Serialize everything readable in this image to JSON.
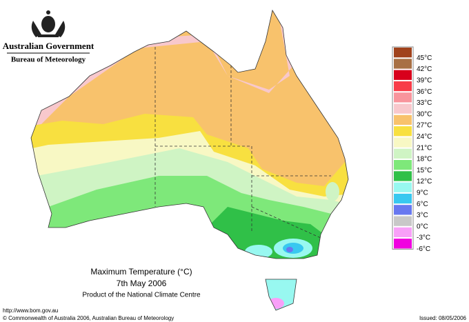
{
  "header": {
    "title": "Australian Government",
    "subtitle": "Bureau of Meteorology"
  },
  "legend": [
    {
      "label": "45°C",
      "color": "#a0421c"
    },
    {
      "label": "42°C",
      "color": "#a87044"
    },
    {
      "label": "39°C",
      "color": "#d8001c"
    },
    {
      "label": "36°C",
      "color": "#f83c48"
    },
    {
      "label": "33°C",
      "color": "#f8949c"
    },
    {
      "label": "30°C",
      "color": "#f8c8cc"
    },
    {
      "label": "27°C",
      "color": "#f8c26c"
    },
    {
      "label": "24°C",
      "color": "#f8e040"
    },
    {
      "label": "21°C",
      "color": "#f8f8c4"
    },
    {
      "label": "18°C",
      "color": "#cff4c4"
    },
    {
      "label": "15°C",
      "color": "#7ee87a"
    },
    {
      "label": "12°C",
      "color": "#30c048"
    },
    {
      "label": "9°C",
      "color": "#98f8f0"
    },
    {
      "label": "6°C",
      "color": "#38c8f0"
    },
    {
      "label": "3°C",
      "color": "#6878f0"
    },
    {
      "label": "0°C",
      "color": "#c8c8c8"
    },
    {
      "label": "-3°C",
      "color": "#f8a0f8"
    },
    {
      "label": "-6°C",
      "color": "#f000e0"
    }
  ],
  "map": {
    "title": "Maximum Temperature (°C)",
    "date": "7th May 2006",
    "credit": "Product of the National Climate Centre"
  },
  "footer": {
    "url": "http://www.bom.gov.au",
    "copyright": "© Commonwealth of Australia 2006, Australian Bureau of Meteorology",
    "issued": "Issued: 08/05/2006"
  }
}
